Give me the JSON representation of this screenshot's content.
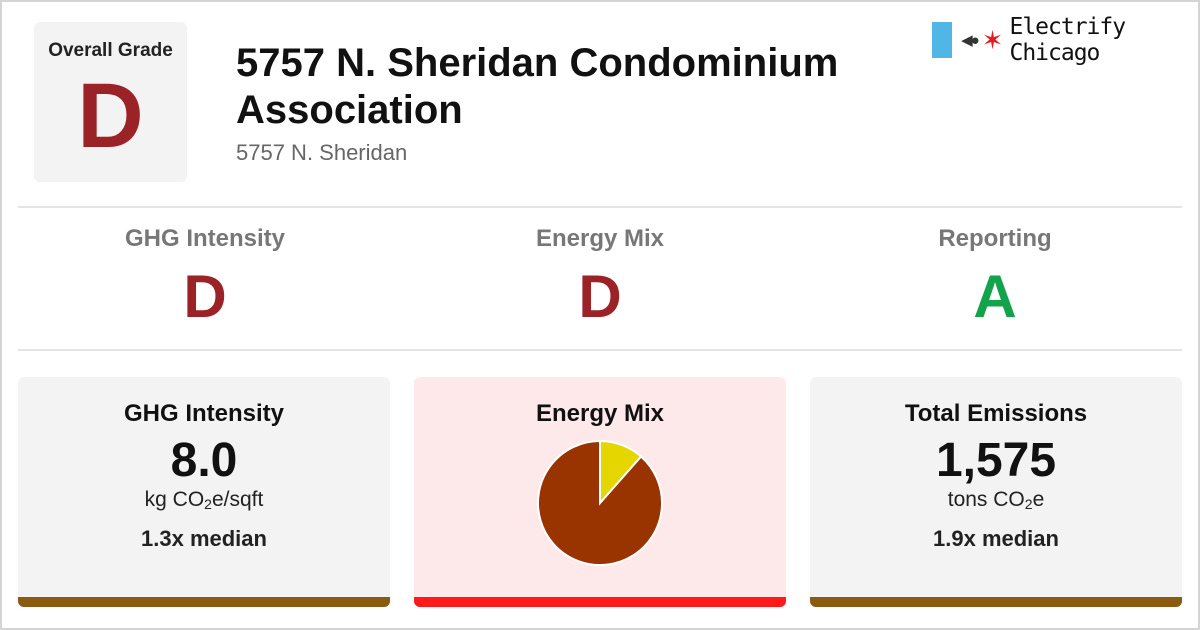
{
  "overall": {
    "label": "Overall Grade",
    "grade": "D",
    "color": "#9b2226"
  },
  "building": {
    "name": "5757 N. Sheridan Condominium Association",
    "address": "5757 N. Sheridan"
  },
  "brand": {
    "name": "Electrify Chicago",
    "star": "✶",
    "plug": "◀●"
  },
  "categories": [
    {
      "name": "GHG Intensity",
      "grade": "D",
      "color": "#9b2226"
    },
    {
      "name": "Energy Mix",
      "grade": "D",
      "color": "#9b2226"
    },
    {
      "name": "Reporting",
      "grade": "A",
      "color": "#13a34a"
    }
  ],
  "cards": {
    "ghg": {
      "title": "GHG Intensity",
      "value": "8.0",
      "unit_pre": "kg CO",
      "unit_sub": "2",
      "unit_post": "e/sqft",
      "median": "1.3x median",
      "bar_color": "#8a5a10"
    },
    "mix": {
      "title": "Energy Mix",
      "bar_color": "#ff1a1a",
      "pie": [
        {
          "name": "",
          "fraction": 0.885,
          "color": "#993300"
        },
        {
          "name": "",
          "fraction": 0.115,
          "color": "#e6d600"
        }
      ]
    },
    "emissions": {
      "title": "Total Emissions",
      "value": "1,575",
      "unit_pre": "tons CO",
      "unit_sub": "2",
      "unit_post": "e",
      "median": "1.9x median",
      "bar_color": "#8a5a10"
    }
  },
  "chart_data": {
    "type": "pie",
    "title": "Energy Mix",
    "slices": [
      {
        "label": "",
        "value": 88.5,
        "color": "#993300"
      },
      {
        "label": "",
        "value": 11.5,
        "color": "#e6d600"
      }
    ]
  }
}
